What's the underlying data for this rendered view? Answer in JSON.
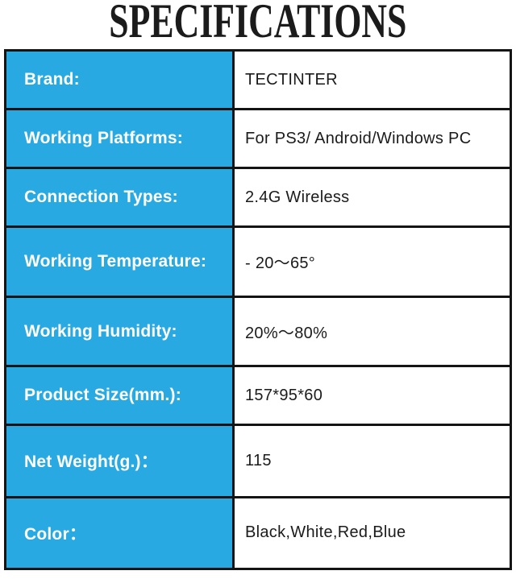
{
  "title": "SPECIFICATIONS",
  "colors": {
    "label_bg": "#28A9E1",
    "border": "#141414",
    "label_text": "#FFFFFF",
    "value_text": "#1B1B1B",
    "title_text": "#1B1B1B"
  },
  "table": {
    "rows": [
      {
        "label": "Brand:",
        "value": "TECTINTER"
      },
      {
        "label": "Working Platforms:",
        "value": "For PS3/ Android/Windows PC"
      },
      {
        "label": "Connection Types:",
        "value": "2.4G Wireless"
      },
      {
        "label": "Working Temperature:",
        "value": "- 20～65°"
      },
      {
        "label": "Working Humidity:",
        "value": "20%～80%"
      },
      {
        "label": "Product Size(mm.):",
        "value": "157*95*60"
      },
      {
        "label": "Net Weight(g.)：",
        "value": "115"
      },
      {
        "label": "Color：",
        "value": "Black,White,Red,Blue"
      }
    ]
  }
}
